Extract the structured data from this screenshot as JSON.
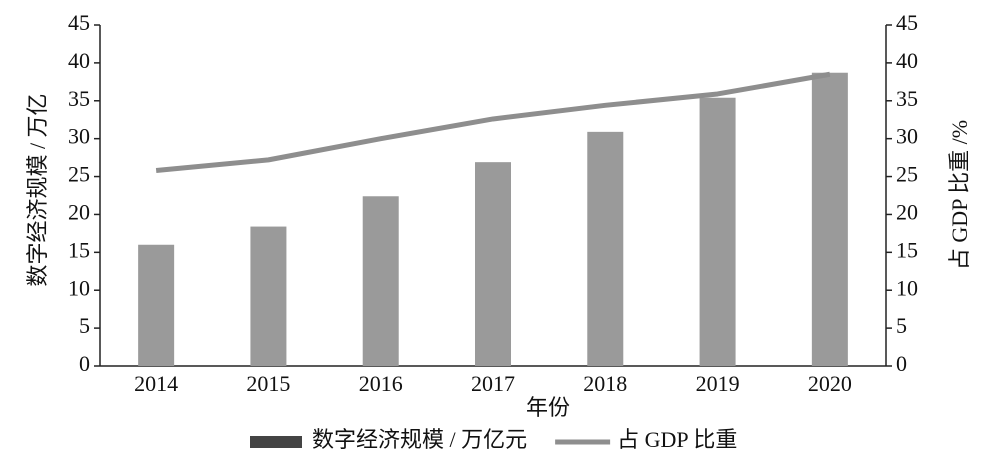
{
  "chart_data": {
    "type": "bar",
    "x_label": "年份",
    "y_label": "数字经济规模 / 万亿",
    "y2_label": "占 GDP 比重 /%",
    "categories": [
      "2014",
      "2015",
      "2016",
      "2017",
      "2018",
      "2019",
      "2020"
    ],
    "series": [
      {
        "name": "数字经济规模 / 万亿元",
        "type": "bar",
        "color": "#9a9a9a",
        "values": [
          16,
          18.4,
          22.4,
          26.9,
          30.9,
          35.4,
          38.7
        ]
      },
      {
        "name": "占 GDP 比重",
        "type": "line",
        "axis": "y2",
        "color": "#8e8e8e",
        "values": [
          25.8,
          27.2,
          30,
          32.6,
          34.4,
          35.9,
          38.5
        ]
      }
    ],
    "ylim": [
      0,
      45
    ],
    "yticks": [
      0,
      5,
      10,
      15,
      20,
      25,
      30,
      35,
      40,
      45
    ],
    "y2lim": [
      0,
      45
    ],
    "y2ticks": [
      0,
      5,
      10,
      15,
      20,
      25,
      30,
      35,
      40,
      45
    ],
    "grid": false,
    "legend": "bottom"
  }
}
